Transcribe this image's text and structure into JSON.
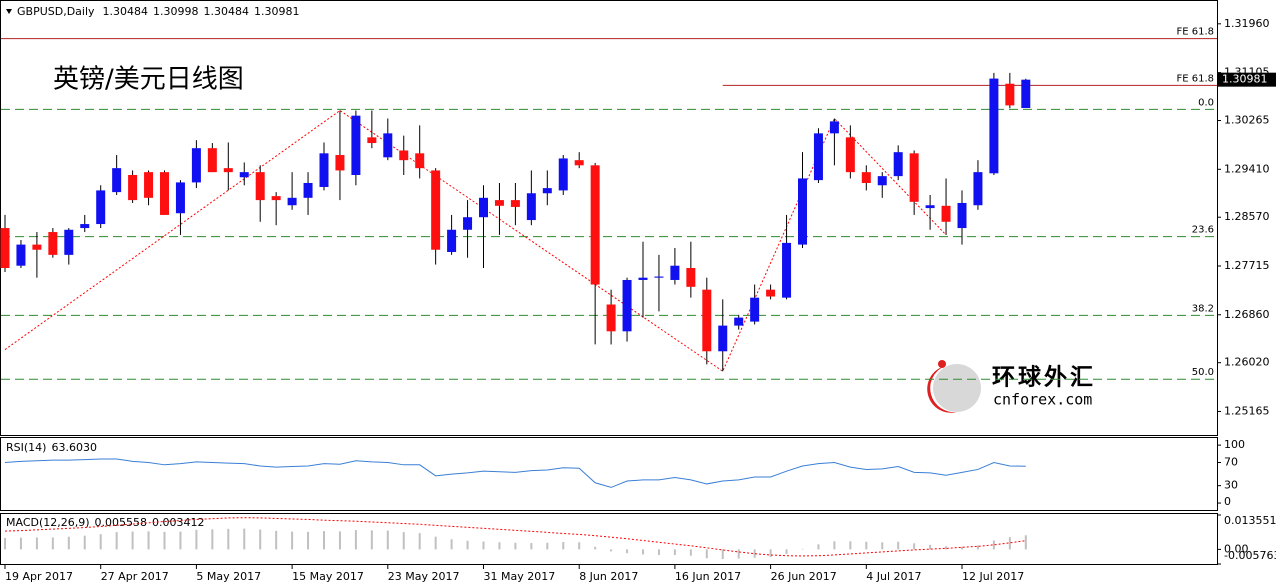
{
  "chart_data": [
    {
      "type": "candlestick",
      "symbol": "GBPUSD,Daily",
      "title": "英镑/美元日线图",
      "categories": [
        "19 Apr 2017",
        null,
        null,
        null,
        null,
        null,
        "27 Apr 2017",
        null,
        null,
        null,
        null,
        null,
        "5 May 2017",
        null,
        null,
        null,
        null,
        null,
        "15 May 2017",
        null,
        null,
        null,
        null,
        null,
        "23 May 2017",
        null,
        null,
        null,
        null,
        null,
        "31 May 2017",
        null,
        null,
        null,
        null,
        null,
        "8 Jun 2017",
        null,
        null,
        null,
        null,
        null,
        "16 Jun 2017",
        null,
        null,
        null,
        null,
        null,
        "26 Jun 2017",
        null,
        null,
        null,
        null,
        null,
        "4 Jul 2017",
        null,
        null,
        null,
        null,
        null,
        "12 Jul 2017",
        null,
        null,
        null,
        null
      ],
      "open": [
        1.2838,
        1.2772,
        1.2809,
        1.2831,
        1.2791,
        1.2838,
        1.2845,
        1.2901,
        1.2931,
        1.2936,
        1.2936,
        1.2864,
        1.2918,
        1.2978,
        1.2943,
        1.2927,
        1.2936,
        1.2894,
        1.2878,
        1.2891,
        1.291,
        1.2966,
        1.2931,
        1.2997,
        1.2962,
        1.2974,
        1.2969,
        1.2939,
        1.2796,
        1.2835,
        1.2857,
        1.2887,
        1.2887,
        1.2852,
        1.2899,
        1.2904,
        1.2957,
        1.2948,
        1.2704,
        1.2657,
        1.2747,
        1.2751,
        1.2747,
        1.2768,
        1.273,
        1.2622,
        1.2667,
        1.2674,
        1.273,
        1.2716,
        1.2809,
        1.2922,
        1.3004,
        1.2997,
        1.2936,
        1.2913,
        1.2929,
        1.2969,
        1.2873,
        1.2877,
        1.2838,
        1.2878,
        1.2934,
        1.3091,
        1.30484
      ],
      "high": [
        1.2861,
        1.2817,
        1.2831,
        1.2838,
        1.2838,
        1.2861,
        1.2913,
        1.2966,
        1.2939,
        1.2939,
        1.2939,
        1.2922,
        1.2992,
        1.2987,
        1.2988,
        1.2953,
        1.2948,
        1.2901,
        1.2936,
        1.2936,
        1.2988,
        1.3044,
        1.3044,
        1.3044,
        1.303,
        1.3,
        1.3018,
        1.2943,
        1.2861,
        1.2887,
        1.2913,
        1.2917,
        1.2917,
        1.2939,
        1.2939,
        1.2966,
        1.2971,
        1.2952,
        1.273,
        1.2751,
        1.2814,
        1.2791,
        1.2803,
        1.2814,
        1.2751,
        1.2713,
        1.2686,
        1.2739,
        1.2739,
        1.2861,
        1.2971,
        1.3013,
        1.303,
        1.3018,
        1.2948,
        1.2936,
        1.2983,
        1.2974,
        1.2896,
        1.2925,
        1.2904,
        1.2957,
        1.311,
        1.311,
        1.30998
      ],
      "low": [
        1.2761,
        1.2768,
        1.2751,
        1.2786,
        1.2774,
        1.2831,
        1.2838,
        1.2896,
        1.2882,
        1.2878,
        1.2861,
        1.2826,
        1.2908,
        1.2936,
        1.2904,
        1.2913,
        1.2849,
        1.2843,
        1.287,
        1.2861,
        1.2904,
        1.2887,
        1.2913,
        1.2978,
        1.2957,
        1.2931,
        1.2925,
        1.2774,
        1.2791,
        1.2786,
        1.2768,
        1.2826,
        1.2843,
        1.2843,
        1.2878,
        1.2896,
        1.2943,
        1.2634,
        1.2634,
        1.2639,
        1.2681,
        1.2692,
        1.2739,
        1.2716,
        1.2599,
        1.2587,
        1.266,
        1.2669,
        1.2713,
        1.2713,
        1.2803,
        1.2917,
        1.2948,
        1.2925,
        1.2904,
        1.2891,
        1.2922,
        1.2861,
        1.2835,
        1.2826,
        1.2809,
        1.287,
        1.2931,
        1.3048,
        1.30484
      ],
      "close": [
        1.2768,
        1.2809,
        1.28,
        1.2791,
        1.2835,
        1.2845,
        1.2904,
        1.2943,
        1.2887,
        1.2891,
        1.2861,
        1.2918,
        1.2978,
        1.2936,
        1.2936,
        1.2936,
        1.2887,
        1.2887,
        1.2891,
        1.2917,
        1.2969,
        1.2939,
        1.3035,
        1.2987,
        1.3004,
        1.2957,
        1.2943,
        1.28,
        1.2835,
        1.2857,
        1.2891,
        1.2877,
        1.2875,
        1.2899,
        1.2908,
        1.296,
        1.2948,
        1.2739,
        1.2657,
        1.2747,
        1.2751,
        1.2753,
        1.2772,
        1.2735,
        1.2622,
        1.2667,
        1.2681,
        1.2716,
        1.2718,
        1.2812,
        1.2925,
        1.3004,
        1.3025,
        1.2936,
        1.2917,
        1.2929,
        1.2971,
        1.2884,
        1.2878,
        1.2849,
        1.2882,
        1.2936,
        1.31,
        1.3053,
        1.30981
      ],
      "up_color": "#1010f0",
      "down_color": "#ff1010",
      "ylim": [
        1.2477,
        1.3236
      ],
      "yticks": [
        {
          "value": 1.3196,
          "label": "1.31960"
        },
        1.31105,
        1.30265,
        {
          "value": 1.2941,
          "label": "1.29410"
        },
        {
          "value": 1.2857,
          "label": "1.28570"
        },
        1.27715,
        {
          "value": 1.2686,
          "label": "1.26860"
        },
        {
          "value": 1.2602,
          "label": "1.26020"
        },
        1.25165
      ],
      "levels": [
        {
          "label": "FE 61.8",
          "value": 1.317,
          "color": "#b22222",
          "style": "solid"
        },
        {
          "label": "FE 61.8",
          "value": 1.3088,
          "color": "#b22222",
          "style": "solid",
          "from_index": 45
        },
        {
          "label": "0.0",
          "value": 1.3046,
          "color": "#2e8b2e",
          "style": "dashed"
        },
        {
          "label": "23.6",
          "value": 1.2823,
          "color": "#2e8b2e",
          "style": "dashed"
        },
        {
          "label": "38.2",
          "value": 1.2685,
          "color": "#2e8b2e",
          "style": "dashed"
        },
        {
          "label": "50.0",
          "value": 1.2573,
          "color": "#2e8b2e",
          "style": "dashed"
        }
      ],
      "zigzag": {
        "x": [
          0,
          21,
          45,
          52,
          59
        ],
        "values": [
          1.2625,
          1.3044,
          1.2587,
          1.303,
          1.2826
        ],
        "color": "#ff0000"
      },
      "watermark": {
        "name": "环球外汇",
        "url": "cnforex.com"
      }
    },
    {
      "type": "line",
      "label": "RSI(14)",
      "current_label": "63.6030",
      "color": "#3a7fd5",
      "values": [
        70,
        72,
        73,
        74,
        74,
        75,
        76,
        76,
        72,
        70,
        66,
        68,
        71,
        70,
        69,
        68,
        64,
        62,
        63,
        64,
        68,
        67,
        73,
        71,
        70,
        66,
        66,
        47,
        50,
        52,
        55,
        54,
        53,
        56,
        57,
        61,
        60,
        35,
        27,
        38,
        40,
        40,
        44,
        40,
        33,
        38,
        40,
        45,
        45,
        55,
        64,
        68,
        70,
        62,
        58,
        59,
        63,
        53,
        52,
        48,
        53,
        58,
        70,
        64,
        63.603
      ],
      "ylim": [
        -12,
        114
      ],
      "yticks": [
        100,
        70,
        30,
        0
      ]
    },
    {
      "type": "bar",
      "label": "MACD(12,26,9)",
      "color": "#c0c0c0",
      "values": [
        0.0045,
        0.0046,
        0.0047,
        0.0047,
        0.005,
        0.0054,
        0.006,
        0.0068,
        0.007,
        0.0071,
        0.0069,
        0.007,
        0.0077,
        0.0079,
        0.0081,
        0.0082,
        0.0078,
        0.0073,
        0.007,
        0.0069,
        0.0072,
        0.0071,
        0.0076,
        0.0075,
        0.0074,
        0.0068,
        0.0064,
        0.005,
        0.004,
        0.0034,
        0.0031,
        0.0028,
        0.0026,
        0.0025,
        0.0026,
        0.0029,
        0.0028,
        0.001,
        -0.0008,
        -0.0015,
        -0.002,
        -0.0022,
        -0.0022,
        -0.0025,
        -0.0035,
        -0.0038,
        -0.0036,
        -0.0033,
        -0.003,
        -0.0018,
        0.0002,
        0.002,
        0.0032,
        0.0032,
        0.003,
        0.0028,
        0.003,
        0.0024,
        0.0018,
        0.0012,
        0.001,
        0.0015,
        0.0035,
        0.0048,
        0.005558
      ],
      "signal": {
        "color": "#ff0000",
        "values": [
          0.0072,
          0.0074,
          0.0077,
          0.008,
          0.0083,
          0.0086,
          0.009,
          0.0095,
          0.01,
          0.0105,
          0.011,
          0.0114,
          0.0118,
          0.0121,
          0.0124,
          0.0125,
          0.0124,
          0.0122,
          0.012,
          0.0118,
          0.0115,
          0.0113,
          0.0111,
          0.0108,
          0.0105,
          0.0102,
          0.0099,
          0.0095,
          0.0091,
          0.0087,
          0.0083,
          0.0079,
          0.0075,
          0.0071,
          0.0067,
          0.0063,
          0.0059,
          0.0054,
          0.0048,
          0.0042,
          0.0035,
          0.0028,
          0.0021,
          0.0014,
          0.0006,
          -0.0002,
          -0.001,
          -0.0017,
          -0.0022,
          -0.0025,
          -0.0026,
          -0.0025,
          -0.0022,
          -0.0018,
          -0.0014,
          -0.001,
          -0.0006,
          -0.0002,
          0.0001,
          0.0004,
          0.0008,
          0.0012,
          0.0018,
          0.0026,
          0.003412
        ]
      },
      "ylim": [
        -0.005763,
        0.013551
      ],
      "yticks": [
        0.013551,
        {
          "value": 0,
          "label": "0.00"
        },
        -0.005763
      ]
    }
  ]
}
